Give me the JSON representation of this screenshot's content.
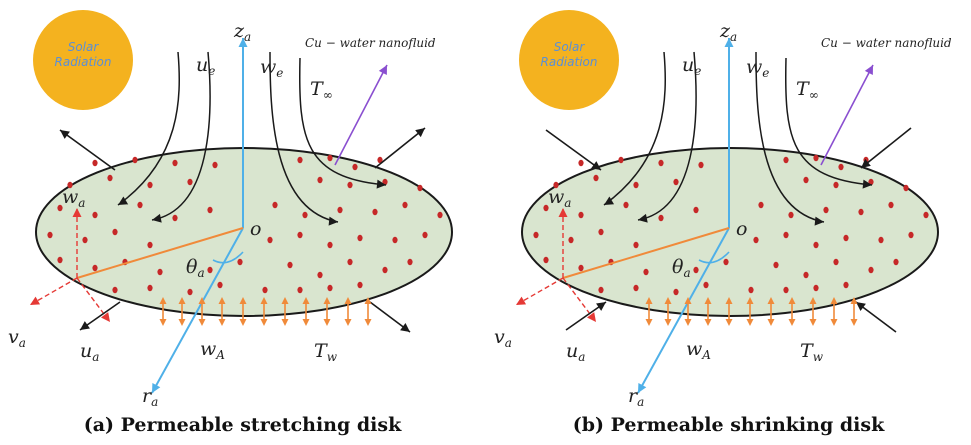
{
  "colors": {
    "disk_fill": "#d9e5cf",
    "disk_stroke": "#1a1a1a",
    "dot": "#c62828",
    "sun": "#f4b21f",
    "sun_text": "#5a8fd6",
    "axis": "#4fb0e8",
    "radius_line": "#f08a3a",
    "suction_arrows": "#f08a3a",
    "velocity_dashed": "#e53935",
    "nanofluid_arrow": "#8a4fd0"
  },
  "panels": [
    {
      "caption": "(a) Permeable stretching disk",
      "sun_line1": "Solar",
      "sun_line2": "Radiation",
      "nanofluid": "Cu − water nanofluid",
      "edge_arrows": "outward",
      "labels": {
        "z_axis": "z",
        "z_sub": "a",
        "ue": "u",
        "ue_sub": "e",
        "we": "w",
        "we_sub": "e",
        "t_inf": "T",
        "t_inf_sub": "∞",
        "w_a": "w",
        "w_a_sub": "a",
        "origin": "o",
        "theta": "θ",
        "theta_sub": "a",
        "v_a": "v",
        "v_a_sub": "a",
        "u_a": "u",
        "u_a_sub": "a",
        "w_A": "w",
        "w_A_sub": "A",
        "t_w": "T",
        "t_w_sub": "w",
        "r_a": "r",
        "r_a_sub": "a"
      }
    },
    {
      "caption": "(b) Permeable shrinking disk",
      "sun_line1": "Solar",
      "sun_line2": "Radiation",
      "nanofluid": "Cu − water nanofluid",
      "edge_arrows": "inward",
      "labels": {
        "z_axis": "z",
        "z_sub": "a",
        "ue": "u",
        "ue_sub": "e",
        "we": "w",
        "we_sub": "e",
        "t_inf": "T",
        "t_inf_sub": "∞",
        "w_a": "w",
        "w_a_sub": "a",
        "origin": "o",
        "theta": "θ",
        "theta_sub": "a",
        "v_a": "v",
        "v_a_sub": "a",
        "u_a": "u",
        "u_a_sub": "a",
        "w_A": "w",
        "w_A_sub": "A",
        "t_w": "T",
        "t_w_sub": "w",
        "r_a": "r",
        "r_a_sub": "a"
      }
    }
  ]
}
